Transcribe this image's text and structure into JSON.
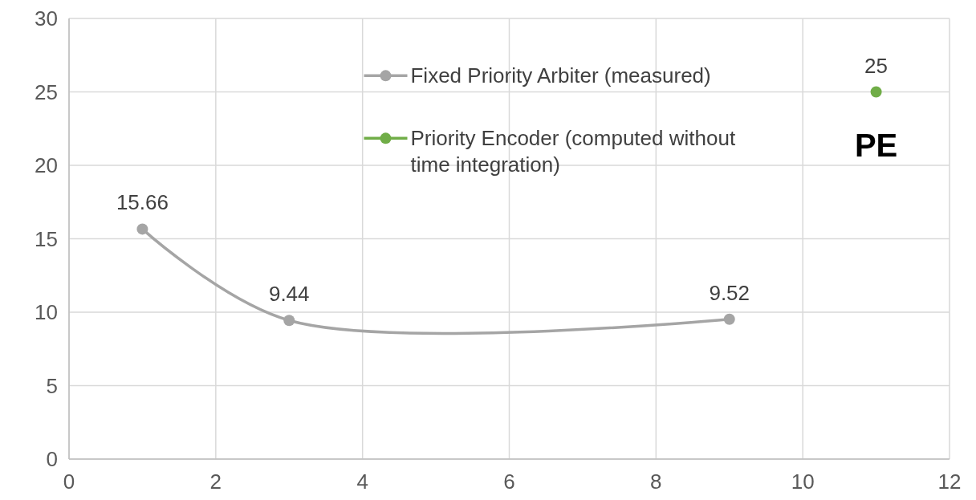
{
  "chart_data": {
    "type": "line",
    "xlim": [
      0,
      12
    ],
    "xticks": [
      0,
      2,
      4,
      6,
      8,
      10,
      12
    ],
    "ylim": [
      0,
      30
    ],
    "yticks": [
      0,
      5,
      10,
      15,
      20,
      25,
      30
    ],
    "grid": true,
    "legend": "top",
    "marker": "circle",
    "line_style": "solid",
    "data_labels": true,
    "series": [
      {
        "name": "Fixed Priority Arbiter (measured)",
        "color": "#a5a5a5",
        "x": [
          1,
          3,
          9
        ],
        "values": [
          15.66,
          9.44,
          9.52
        ]
      },
      {
        "name": "Priority Encoder (computed without time integration)",
        "color": "#70ad47",
        "x": [
          11
        ],
        "values": [
          25
        ]
      }
    ],
    "annotations": [
      "PE"
    ]
  }
}
